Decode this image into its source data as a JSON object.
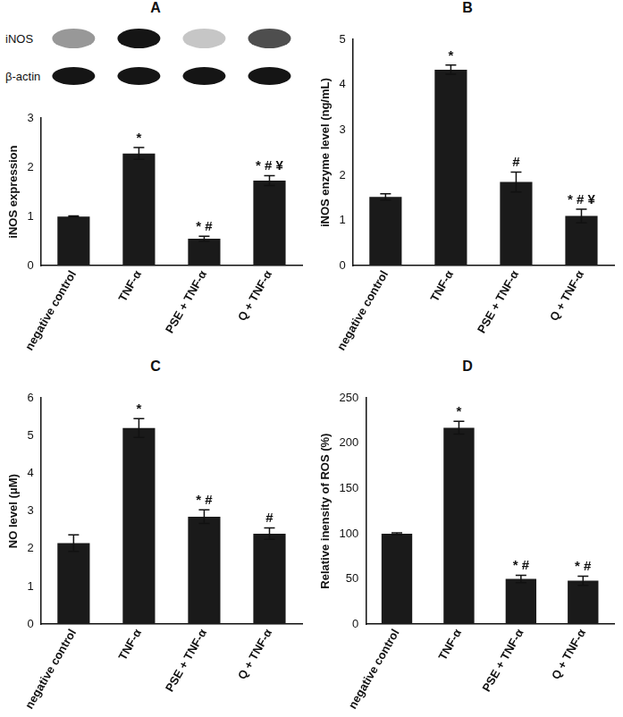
{
  "chart_data": [
    {
      "type": "bar",
      "title": "A",
      "blot_labels": [
        "iNOS",
        "β-actin"
      ],
      "categories": [
        "negative control",
        "TNF-α",
        "PSE + TNF-α",
        "Q + TNF-α"
      ],
      "values": [
        1.0,
        2.28,
        0.55,
        1.73
      ],
      "error": [
        0.01,
        0.12,
        0.05,
        0.1
      ],
      "significance": [
        null,
        "*",
        "* #",
        "* # ¥"
      ],
      "y_label": "iNOS expression",
      "color": "#1a1a1a",
      "ylim": [
        0,
        3
      ],
      "yticks": [
        0,
        1,
        2,
        3
      ],
      "grid": false
    },
    {
      "type": "bar",
      "title": "B",
      "categories": [
        "negative control",
        "TNF-α",
        "PSE + TNF-α",
        "Q + TNF-α"
      ],
      "values": [
        1.52,
        4.33,
        1.85,
        1.1
      ],
      "error": [
        0.07,
        0.1,
        0.22,
        0.15
      ],
      "significance": [
        null,
        "*",
        "#",
        "* # ¥"
      ],
      "y_label": "iNOS enzyme level (ng/mL)",
      "color": "#1a1a1a",
      "ylim": [
        0,
        5
      ],
      "yticks": [
        0,
        1,
        2,
        3,
        4,
        5
      ],
      "grid": false
    },
    {
      "type": "bar",
      "title": "C",
      "categories": [
        "negative control",
        "TNF-α",
        "PSE + TNF-α",
        "Q + TNF-α"
      ],
      "values": [
        2.15,
        5.2,
        2.85,
        2.4
      ],
      "error": [
        0.22,
        0.25,
        0.18,
        0.15
      ],
      "significance": [
        null,
        "*",
        "* #",
        "#"
      ],
      "y_label": "NO level (μM)",
      "color": "#1a1a1a",
      "ylim": [
        0,
        6
      ],
      "yticks": [
        0,
        1,
        2,
        3,
        4,
        5,
        6
      ],
      "grid": false
    },
    {
      "type": "bar",
      "title": "D",
      "categories": [
        "negative control",
        "TNF-α",
        "PSE + TNF-α",
        "Q + TNF-α"
      ],
      "values": [
        100,
        217,
        50,
        48
      ],
      "error": [
        1,
        7,
        4,
        5
      ],
      "significance": [
        null,
        "*",
        "* #",
        "* #"
      ],
      "y_label": "Relative inensity of ROS (%)",
      "color": "#1a1a1a",
      "ylim": [
        0,
        250
      ],
      "yticks": [
        0,
        50,
        100,
        150,
        200,
        250
      ],
      "grid": false
    }
  ]
}
